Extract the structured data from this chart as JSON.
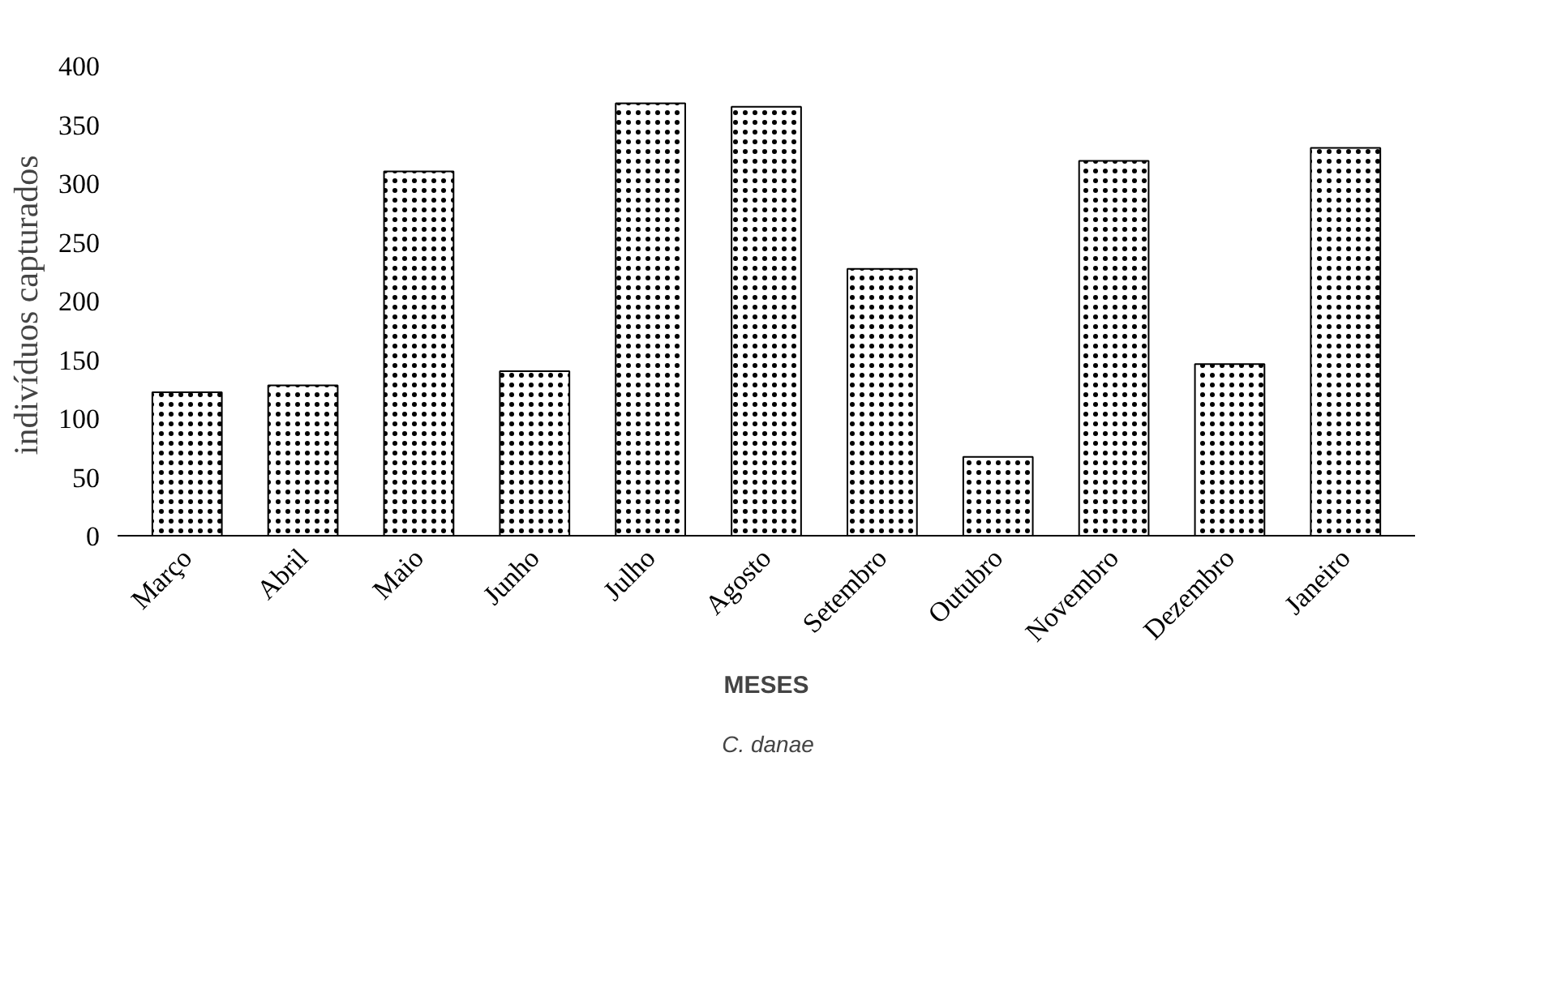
{
  "chart_data": {
    "type": "bar",
    "xlabel": "MESES",
    "ylabel": "indivíduos  capturados",
    "categories": [
      "Março",
      "Abril",
      "Maio",
      "Junho",
      "Julho",
      "Agosto",
      "Setembro",
      "Outubro",
      "Novembro",
      "Dezembro",
      "Janeiro"
    ],
    "series": [
      {
        "name": "C. danae",
        "color": "#ffffff",
        "values": [
          122,
          128,
          310,
          140,
          368,
          365,
          227,
          67,
          319,
          146,
          330
        ]
      }
    ],
    "ylim": [
      0,
      400
    ],
    "yticks": [
      0,
      50,
      100,
      150,
      200,
      250,
      300,
      350,
      400
    ],
    "grid": false,
    "legend": "bottom"
  }
}
